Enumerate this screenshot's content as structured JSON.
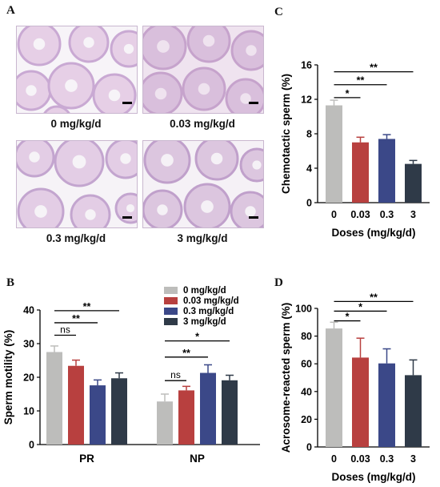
{
  "panels": {
    "a": {
      "letter": "A",
      "images": [
        {
          "label": "0 mg/kg/d",
          "tissue": "#e6cfe6",
          "lumen": "#f7f4f8",
          "tubule": "#c9a9d3"
        },
        {
          "label": "0.03 mg/kg/d",
          "tissue": "#d9bfdc",
          "lumen": "#efe3ef",
          "tubule": "#c6a3cc"
        },
        {
          "label": "0.3 mg/kg/d",
          "tissue": "#e3cde5",
          "lumen": "#f6f3f7",
          "tubule": "#c3a5cf"
        },
        {
          "label": "3 mg/kg/d",
          "tissue": "#dcc6df",
          "lumen": "#f5f1f6",
          "tubule": "#c0a0cb"
        }
      ]
    },
    "b": {
      "letter": "B"
    },
    "c": {
      "letter": "C"
    },
    "d": {
      "letter": "D"
    }
  },
  "colors": [
    "#bdbdbb",
    "#b8403f",
    "#3b4888",
    "#2f3a48"
  ],
  "chart_data": [
    {
      "id": "B",
      "type": "bar",
      "categories": [
        "PR",
        "NP"
      ],
      "series": [
        {
          "name": "0 mg/kg/d",
          "values": [
            27.5,
            12.8
          ],
          "errors": [
            1.8,
            2.2
          ]
        },
        {
          "name": "0.03 mg/kg/d",
          "values": [
            23.4,
            16.1
          ],
          "errors": [
            1.7,
            1.2
          ]
        },
        {
          "name": "0.3 mg/kg/d",
          "values": [
            17.6,
            21.3
          ],
          "errors": [
            1.6,
            2.4
          ]
        },
        {
          "name": "3 mg/kg/d",
          "values": [
            19.7,
            19.1
          ],
          "errors": [
            1.6,
            1.5
          ]
        }
      ],
      "ylabel": "Sperm motility (%)",
      "xlabel": "",
      "ylim": [
        0,
        40
      ],
      "yticks": [
        0,
        10,
        20,
        30,
        40
      ],
      "legend": "top-right",
      "significance": [
        {
          "cat": 0,
          "from": 0,
          "to": 1,
          "label": "ns",
          "y": 32.5
        },
        {
          "cat": 0,
          "from": 0,
          "to": 2,
          "label": "**",
          "y": 36.2
        },
        {
          "cat": 0,
          "from": 0,
          "to": 3,
          "label": "**",
          "y": 39.8
        },
        {
          "cat": 1,
          "from": 0,
          "to": 1,
          "label": "ns",
          "y": 19.0
        },
        {
          "cat": 1,
          "from": 0,
          "to": 2,
          "label": "**",
          "y": 26.0
        },
        {
          "cat": 1,
          "from": 0,
          "to": 3,
          "label": "*",
          "y": 30.8
        }
      ]
    },
    {
      "id": "C",
      "type": "bar",
      "categories": [
        "0",
        "0.03",
        "0.3",
        "3"
      ],
      "values": [
        11.3,
        7.0,
        7.4,
        4.5
      ],
      "errors": [
        0.6,
        0.6,
        0.5,
        0.4
      ],
      "ylabel": "Chemotactic sperm (%)",
      "xlabel": "Doses (mg/kg/d)",
      "ylim": [
        0,
        16
      ],
      "yticks": [
        0,
        4,
        8,
        12,
        16
      ],
      "significance": [
        {
          "from": 0,
          "to": 1,
          "label": "*",
          "y": 12.2
        },
        {
          "from": 0,
          "to": 2,
          "label": "**",
          "y": 13.7
        },
        {
          "from": 0,
          "to": 3,
          "label": "**",
          "y": 15.2
        }
      ]
    },
    {
      "id": "D",
      "type": "bar",
      "categories": [
        "0",
        "0.03",
        "0.3",
        "3"
      ],
      "values": [
        85.5,
        64.5,
        60.3,
        51.8
      ],
      "errors": [
        4.5,
        14.0,
        10.5,
        11.0
      ],
      "ylabel": "Acrosome-reacted sperm (%)",
      "xlabel": "Doses (mg/kg/d)",
      "ylim": [
        0,
        100
      ],
      "yticks": [
        0,
        20,
        40,
        60,
        80,
        100
      ],
      "significance": [
        {
          "from": 0,
          "to": 1,
          "label": "*",
          "y": 91
        },
        {
          "from": 0,
          "to": 2,
          "label": "*",
          "y": 98
        },
        {
          "from": 0,
          "to": 3,
          "label": "**",
          "y": 105
        }
      ]
    }
  ]
}
